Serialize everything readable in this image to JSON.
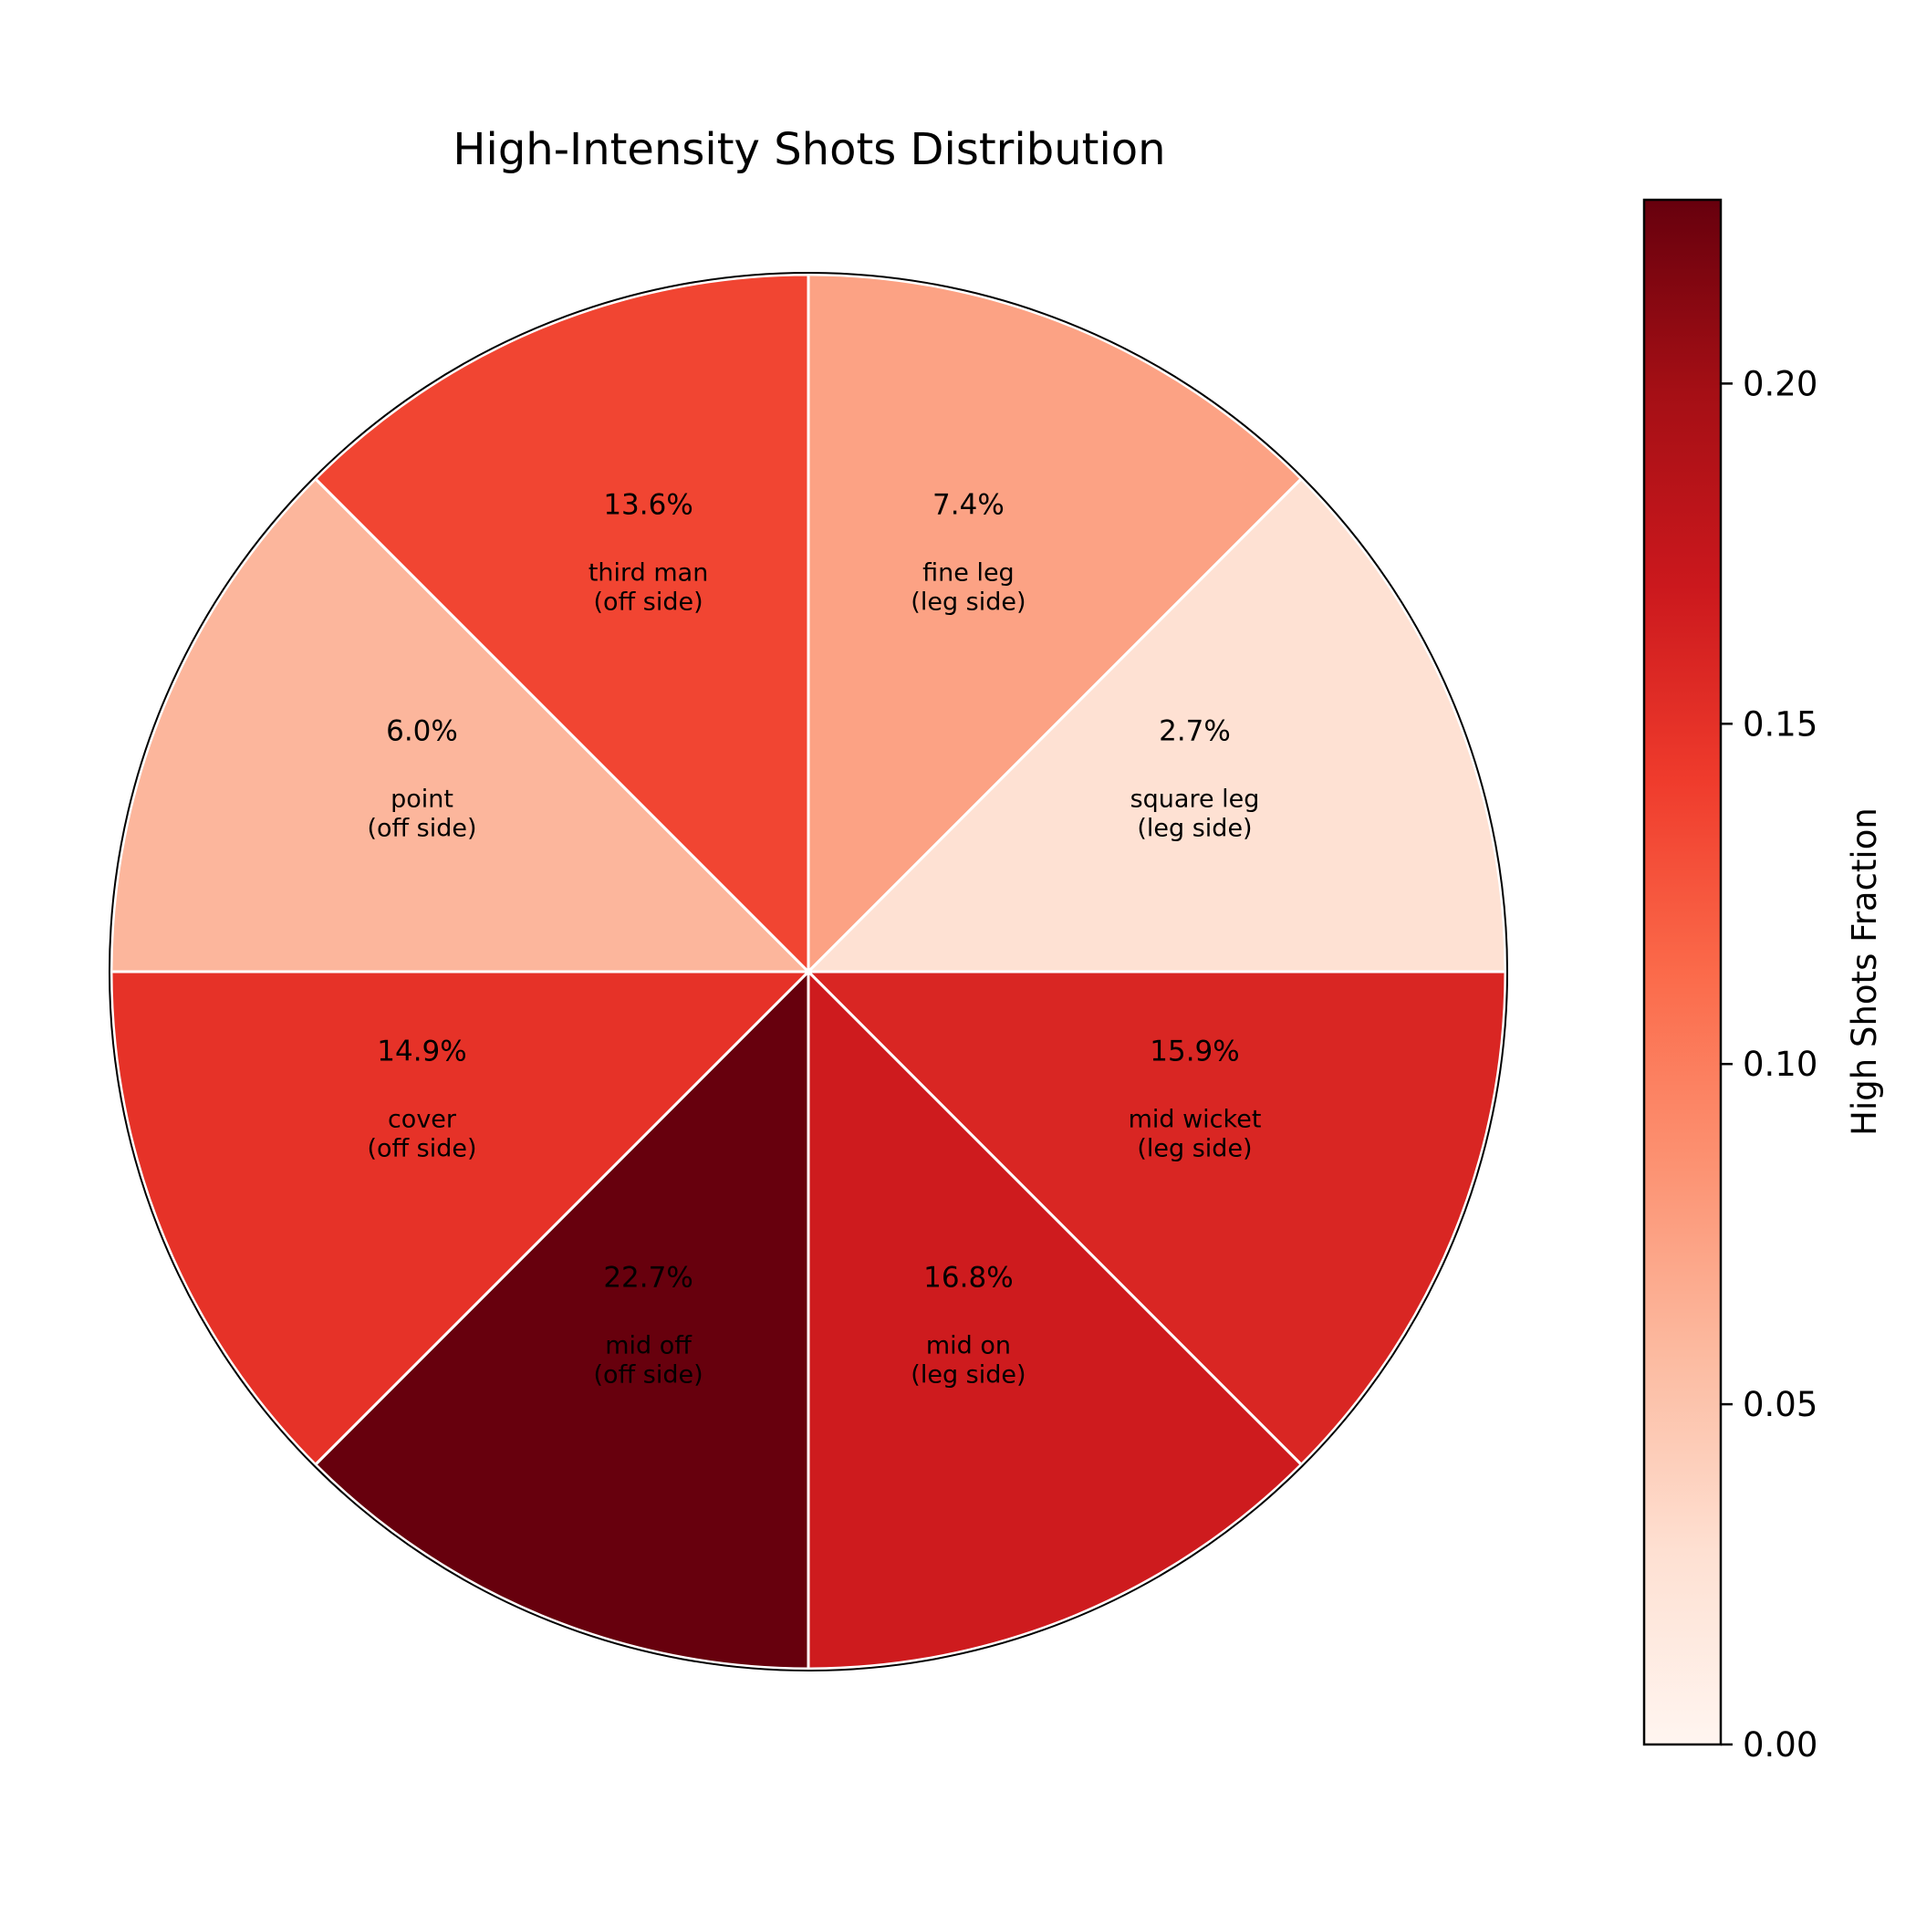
{
  "chart_data": {
    "type": "pie",
    "title": "High-Intensity Shots Distribution",
    "slices": [
      {
        "pct_label": "7.4%",
        "zone": "fine leg",
        "side": "(leg side)",
        "value": 0.074
      },
      {
        "pct_label": "2.7%",
        "zone": "square leg",
        "side": "(leg side)",
        "value": 0.027
      },
      {
        "pct_label": "15.9%",
        "zone": "mid wicket",
        "side": "(leg side)",
        "value": 0.159
      },
      {
        "pct_label": "16.8%",
        "zone": "mid on",
        "side": "(leg side)",
        "value": 0.168
      },
      {
        "pct_label": "22.7%",
        "zone": "mid off",
        "side": "(off side)",
        "value": 0.227
      },
      {
        "pct_label": "14.9%",
        "zone": "cover",
        "side": "(off side)",
        "value": 0.149
      },
      {
        "pct_label": "6.0%",
        "zone": "point",
        "side": "(off side)",
        "value": 0.06
      },
      {
        "pct_label": "13.6%",
        "zone": "third man",
        "side": "(off side)",
        "value": 0.136
      }
    ],
    "slice_order": "clockwise from 12 o'clock, equal angular sectors",
    "colorbar": {
      "label": "High Shots Fraction",
      "colormap": "Reds",
      "range": [
        0,
        0.227
      ],
      "ticks": [
        0.0,
        0.05,
        0.1,
        0.15,
        0.2
      ],
      "tick_labels": [
        "0.00",
        "0.05",
        "0.10",
        "0.15",
        "0.20"
      ]
    },
    "colormap_stops": [
      "#fff5f0",
      "#fee0d2",
      "#fcbba1",
      "#fc9272",
      "#fb6a4a",
      "#ef3b2c",
      "#cb181d",
      "#a50f15",
      "#67000d"
    ],
    "edge_color": "#ffffff"
  }
}
